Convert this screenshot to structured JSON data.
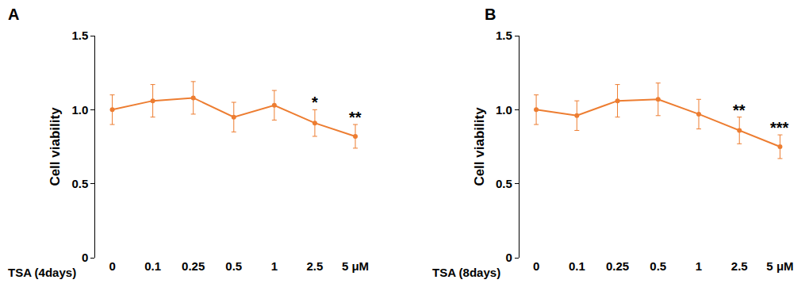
{
  "chart_data": [
    {
      "type": "line",
      "title": "A",
      "xlabel": "TSA (4days)",
      "ylabel": "Cell viability",
      "categories": [
        "0",
        "0.1",
        "0.25",
        "0.5",
        "1",
        "2.5",
        "5 μM"
      ],
      "values": [
        1.0,
        1.06,
        1.08,
        0.95,
        1.03,
        0.91,
        0.82
      ],
      "errors": [
        0.1,
        0.11,
        0.11,
        0.1,
        0.1,
        0.09,
        0.08
      ],
      "color": "#ed7d31",
      "marker": "circle",
      "grid": false,
      "ylim": [
        0,
        1.5
      ],
      "yticks": [
        0,
        0.5,
        {
          "value": 1,
          "label": "1.0"
        },
        1.5
      ],
      "annotations": [
        {
          "text": "*",
          "category": "2.5"
        },
        {
          "text": "**",
          "category": "5 μM"
        }
      ]
    },
    {
      "type": "line",
      "title": "B",
      "xlabel": "TSA (8days)",
      "ylabel": "Cell viability",
      "categories": [
        "0",
        "0.1",
        "0.25",
        "0.5",
        "1",
        "2.5",
        "5 μM"
      ],
      "values": [
        1.0,
        0.96,
        1.06,
        1.07,
        0.97,
        0.86,
        0.75
      ],
      "errors": [
        0.1,
        0.1,
        0.11,
        0.11,
        0.1,
        0.09,
        0.08
      ],
      "color": "#ed7d31",
      "marker": "circle",
      "grid": false,
      "ylim": [
        0,
        1.5
      ],
      "yticks": [
        0,
        0.5,
        {
          "value": 1,
          "label": "1.0"
        },
        1.5
      ],
      "annotations": [
        {
          "text": "**",
          "category": "2.5"
        },
        {
          "text": "***",
          "category": "5 μM"
        }
      ]
    }
  ]
}
